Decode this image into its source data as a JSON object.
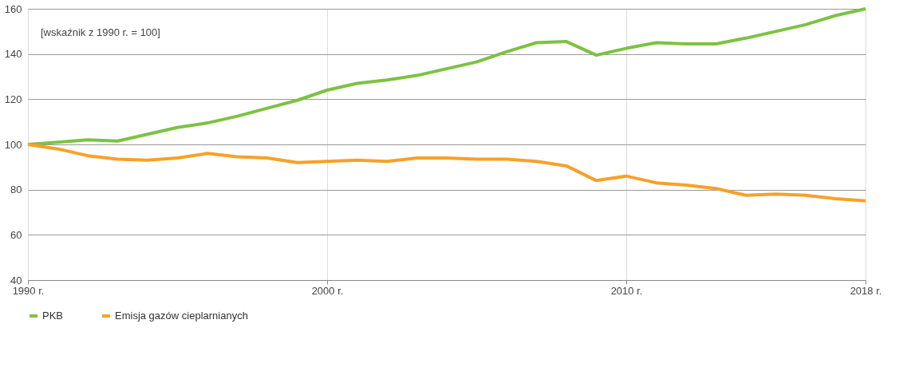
{
  "chart_data": {
    "type": "line",
    "annotations": [
      "[wskaźnik z 1990 r. = 100]"
    ],
    "x": [
      1990,
      1991,
      1992,
      1993,
      1994,
      1995,
      1996,
      1997,
      1998,
      1999,
      2000,
      2001,
      2002,
      2003,
      2004,
      2005,
      2006,
      2007,
      2008,
      2009,
      2010,
      2011,
      2012,
      2013,
      2014,
      2015,
      2016,
      2017,
      2018
    ],
    "series": [
      {
        "name": "PKB",
        "color": "#7dc242",
        "values": [
          100,
          101,
          102,
          101.5,
          104.5,
          107.5,
          109.5,
          112.5,
          116,
          119.5,
          124,
          127,
          128.5,
          130.5,
          133.5,
          136.5,
          141,
          145,
          145.5,
          139.5,
          142.5,
          145,
          144.5,
          144.5,
          147,
          150,
          153,
          157,
          160
        ]
      },
      {
        "name": "Emisja gazów cieplarnianych",
        "color": "#f7a128",
        "values": [
          100,
          98,
          95,
          93.5,
          93,
          94,
          96,
          94.5,
          94,
          92,
          92.5,
          93,
          92.5,
          94,
          94,
          93.5,
          93.5,
          92.5,
          90.5,
          84,
          86,
          83,
          82,
          80.5,
          77.5,
          78,
          77.5,
          76,
          75
        ]
      }
    ],
    "xlim": [
      1990,
      2018
    ],
    "xticks": [
      {
        "value": 1990,
        "label": "1990 r."
      },
      {
        "value": 2000,
        "label": "2000 r."
      },
      {
        "value": 2010,
        "label": "2010 r."
      },
      {
        "value": 2018,
        "label": "2018 r."
      }
    ],
    "ylim": [
      40,
      160
    ],
    "yticks": [
      40,
      60,
      80,
      100,
      120,
      140,
      160
    ],
    "grid": true,
    "legend": "bottom",
    "marker": "none",
    "line_style": "solid"
  }
}
